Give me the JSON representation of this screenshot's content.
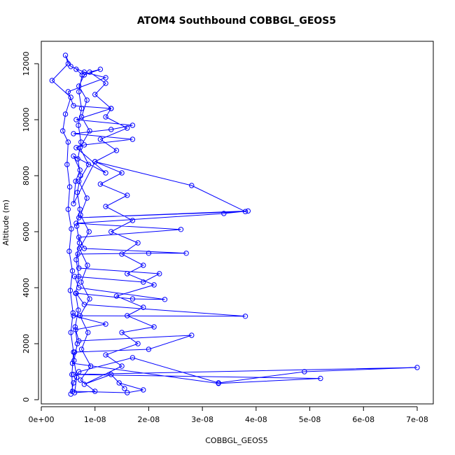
{
  "chart_data": {
    "type": "scatter",
    "title": "ATOM4 Southbound COBBGL_GEOS5",
    "xlabel": "COBBGL_GEOS5",
    "ylabel": "Altitude (m)",
    "xlim": [
      0,
      7.3e-08
    ],
    "ylim": [
      -150,
      12800
    ],
    "x_ticks": [
      0,
      1e-08,
      2e-08,
      3e-08,
      4e-08,
      5e-08,
      6e-08,
      7e-08
    ],
    "x_tick_labels": [
      "0e+00",
      "1e-08",
      "2e-08",
      "3e-08",
      "4e-08",
      "5e-08",
      "6e-08",
      "7e-08"
    ],
    "y_ticks": [
      0,
      2000,
      4000,
      6000,
      8000,
      10000,
      12000
    ],
    "y_tick_labels": [
      "0",
      "2000",
      "4000",
      "6000",
      "8000",
      "10000",
      "12000"
    ],
    "series": [
      {
        "color": "#0000ff",
        "marker": "open-circle",
        "line": true,
        "points": [
          [
            5.5e-09,
            200
          ],
          [
            6e-09,
            600
          ],
          [
            7e-09,
            1000
          ],
          [
            1.7e-08,
            1500
          ],
          [
            3.3e-08,
            600
          ],
          [
            4.9e-08,
            1000
          ],
          [
            7e-08,
            1150
          ],
          [
            6e-09,
            900
          ],
          [
            5.2e-08,
            760
          ],
          [
            3.3e-08,
            580
          ],
          [
            5.8e-09,
            1300
          ],
          [
            6.2e-09,
            1700
          ],
          [
            2e-08,
            1800
          ],
          [
            2.8e-08,
            2300
          ],
          [
            7e-09,
            2100
          ],
          [
            6.4e-09,
            2500
          ],
          [
            1.2e-08,
            2700
          ],
          [
            6e-09,
            3000
          ],
          [
            3.8e-08,
            2980
          ],
          [
            8e-09,
            3400
          ],
          [
            6.5e-09,
            3800
          ],
          [
            1.7e-08,
            3600
          ],
          [
            2.3e-08,
            3580
          ],
          [
            7e-09,
            4000
          ],
          [
            6.2e-09,
            4400
          ],
          [
            1.9e-08,
            4200
          ],
          [
            2.2e-08,
            4500
          ],
          [
            7e-09,
            4700
          ],
          [
            6.8e-09,
            5200
          ],
          [
            2e-08,
            5230
          ],
          [
            2.7e-08,
            5230
          ],
          [
            8e-09,
            5400
          ],
          [
            7e-09,
            5800
          ],
          [
            2.6e-08,
            6080
          ],
          [
            6.5e-09,
            6300
          ],
          [
            3.4e-08,
            6650
          ],
          [
            3.85e-08,
            6740
          ],
          [
            7e-09,
            6500
          ],
          [
            3.8e-08,
            6720
          ],
          [
            2.8e-08,
            7650
          ],
          [
            1e-08,
            8500
          ],
          [
            6e-09,
            7000
          ],
          [
            6.4e-09,
            7800
          ],
          [
            7.2e-09,
            8200
          ],
          [
            6e-09,
            8700
          ],
          [
            1.2e-08,
            8100
          ],
          [
            6.5e-09,
            9000
          ],
          [
            8e-09,
            9100
          ],
          [
            1.7e-08,
            9300
          ],
          [
            6e-09,
            9500
          ],
          [
            1.3e-08,
            9650
          ],
          [
            1.7e-08,
            9800
          ],
          [
            6.5e-09,
            10000
          ],
          [
            1.3e-08,
            10400
          ],
          [
            6e-09,
            10500
          ],
          [
            5e-09,
            11000
          ],
          [
            1.2e-08,
            11500
          ],
          [
            8e-09,
            11700
          ],
          [
            5.5e-09,
            11900
          ],
          [
            4.5e-09,
            12300
          ],
          [
            5e-09,
            12000
          ],
          [
            2e-09,
            11400
          ],
          [
            5.5e-09,
            10800
          ],
          [
            4.5e-09,
            10200
          ],
          [
            4e-09,
            9600
          ],
          [
            5e-09,
            9200
          ],
          [
            4.8e-09,
            8400
          ],
          [
            5.3e-09,
            7600
          ],
          [
            5e-09,
            6800
          ],
          [
            5.6e-09,
            6100
          ],
          [
            5.2e-09,
            5300
          ],
          [
            5.8e-09,
            4600
          ],
          [
            5.4e-09,
            3900
          ],
          [
            5.9e-09,
            3100
          ],
          [
            5.5e-09,
            2400
          ],
          [
            6e-09,
            1700
          ],
          [
            5.7e-09,
            900
          ],
          [
            5.8e-09,
            300
          ],
          [
            1.6e-08,
            250
          ],
          [
            1.9e-08,
            350
          ],
          [
            1.45e-08,
            600
          ],
          [
            1.55e-08,
            400
          ],
          [
            1.3e-08,
            900
          ],
          [
            8e-09,
            550
          ],
          [
            1.5e-08,
            1200
          ],
          [
            1.2e-08,
            1600
          ],
          [
            1.8e-08,
            2000
          ],
          [
            1.5e-08,
            2400
          ],
          [
            2.1e-08,
            2600
          ],
          [
            1.6e-08,
            3000
          ],
          [
            1.9e-08,
            3300
          ],
          [
            1.4e-08,
            3700
          ],
          [
            2.1e-08,
            4100
          ],
          [
            1.6e-08,
            4500
          ],
          [
            1.9e-08,
            4800
          ],
          [
            1.5e-08,
            5200
          ],
          [
            1.8e-08,
            5600
          ],
          [
            1.3e-08,
            6000
          ],
          [
            1.7e-08,
            6400
          ],
          [
            1.2e-08,
            6900
          ],
          [
            1.6e-08,
            7300
          ],
          [
            1.1e-08,
            7700
          ],
          [
            1.5e-08,
            8100
          ],
          [
            1e-08,
            8500
          ],
          [
            1.4e-08,
            8900
          ],
          [
            1.1e-08,
            9300
          ],
          [
            1.6e-08,
            9700
          ],
          [
            1.2e-08,
            10100
          ],
          [
            1.3e-08,
            10400
          ],
          [
            1e-08,
            10900
          ],
          [
            1.2e-08,
            11300
          ],
          [
            9e-09,
            11700
          ],
          [
            1.1e-08,
            11800
          ],
          [
            8e-09,
            11600
          ],
          [
            7e-09,
            11200
          ],
          [
            8.5e-09,
            10700
          ],
          [
            7.5e-09,
            10100
          ],
          [
            9e-09,
            9600
          ],
          [
            7.2e-09,
            9000
          ],
          [
            8.8e-09,
            8400
          ],
          [
            7e-09,
            7800
          ],
          [
            8.5e-09,
            7200
          ],
          [
            7.3e-09,
            6600
          ],
          [
            8.9e-09,
            6000
          ],
          [
            7.1e-09,
            5400
          ],
          [
            8.6e-09,
            4800
          ],
          [
            7.4e-09,
            4200
          ],
          [
            9e-09,
            3600
          ],
          [
            7.2e-09,
            3000
          ],
          [
            8.7e-09,
            2400
          ],
          [
            7.5e-09,
            1800
          ],
          [
            9.2e-09,
            1200
          ],
          [
            7.3e-09,
            700
          ],
          [
            1e-08,
            300
          ],
          [
            6.2e-09,
            250
          ],
          [
            6.6e-09,
            800
          ],
          [
            6.1e-09,
            1400
          ],
          [
            6.7e-09,
            2000
          ],
          [
            6.3e-09,
            2600
          ],
          [
            6.9e-09,
            3200
          ],
          [
            6.4e-09,
            3800
          ],
          [
            7e-09,
            4400
          ],
          [
            6.5e-09,
            5000
          ],
          [
            7.1e-09,
            5600
          ],
          [
            6.6e-09,
            6200
          ],
          [
            7.2e-09,
            6800
          ],
          [
            6.7e-09,
            7400
          ],
          [
            7.3e-09,
            8000
          ],
          [
            6.8e-09,
            8600
          ],
          [
            7.4e-09,
            9200
          ],
          [
            6.9e-09,
            9800
          ],
          [
            7.5e-09,
            10400
          ],
          [
            7e-09,
            11000
          ],
          [
            7.6e-09,
            11600
          ],
          [
            6.5e-09,
            11800
          ]
        ]
      }
    ]
  }
}
